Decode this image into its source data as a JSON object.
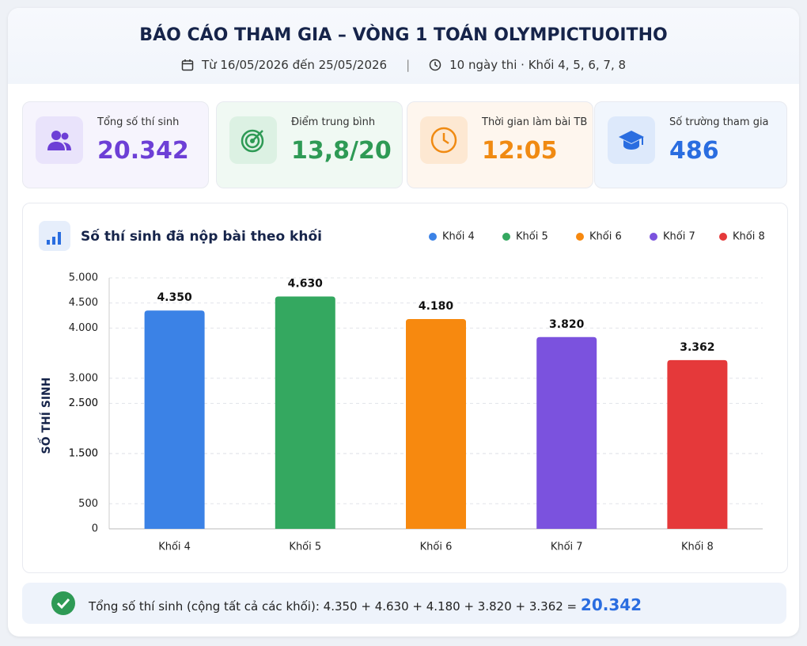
{
  "header": {
    "title": "BÁO CÁO THAM GIA – VÒNG 1 TOÁN OLYMPICTUOITHO",
    "date_range": "Từ 16/05/2026 đến 25/05/2026",
    "info": "10 ngày thi · Khối 4, 5, 6, 7, 8"
  },
  "stats": [
    {
      "label": "Tổng số thí sinh",
      "value": "20.342"
    },
    {
      "label": "Điểm trung bình",
      "value": "13,8/20"
    },
    {
      "label": "Thời gian làm bài TB",
      "value": "12:05"
    },
    {
      "label": "Số trường tham gia",
      "value": "486"
    }
  ],
  "chart_data": {
    "type": "bar",
    "title": "Số thí sinh đã nộp bài theo khối",
    "y_label": "SỐ THÍ SINH",
    "categories": [
      "Khối 4",
      "Khối 5",
      "Khối 6",
      "Khối 7",
      "Khối 8"
    ],
    "values": [
      4350,
      4630,
      4180,
      3820,
      3362
    ],
    "value_labels": [
      "4.350",
      "4.630",
      "4.180",
      "3.820",
      "3.362"
    ],
    "colors": [
      "#3b82e6",
      "#34a860",
      "#f7890f",
      "#7b52de",
      "#e5393a"
    ],
    "ylim": [
      0,
      5000
    ],
    "yticks": [
      {
        "value": 5000,
        "label": "5.000"
      },
      {
        "value": 4500,
        "label": "4.500"
      },
      {
        "value": 4000,
        "label": "4.000"
      },
      {
        "value": 3000,
        "label": "3.000"
      },
      {
        "value": 2500,
        "label": "2.500"
      },
      {
        "value": 2500,
        "label": "2.500"
      },
      {
        "value": 1500,
        "label": "1.500"
      },
      {
        "value": 1500,
        "label": "1.500"
      },
      500,
      0
    ],
    "grid": true,
    "legend": "top-right"
  },
  "footer": {
    "text": "Tổng số thí sinh (cộng tất cả các khối): 4.350 + 4.630 + 4.180 + 3.820 + 3.362 =",
    "total": "20.342"
  }
}
